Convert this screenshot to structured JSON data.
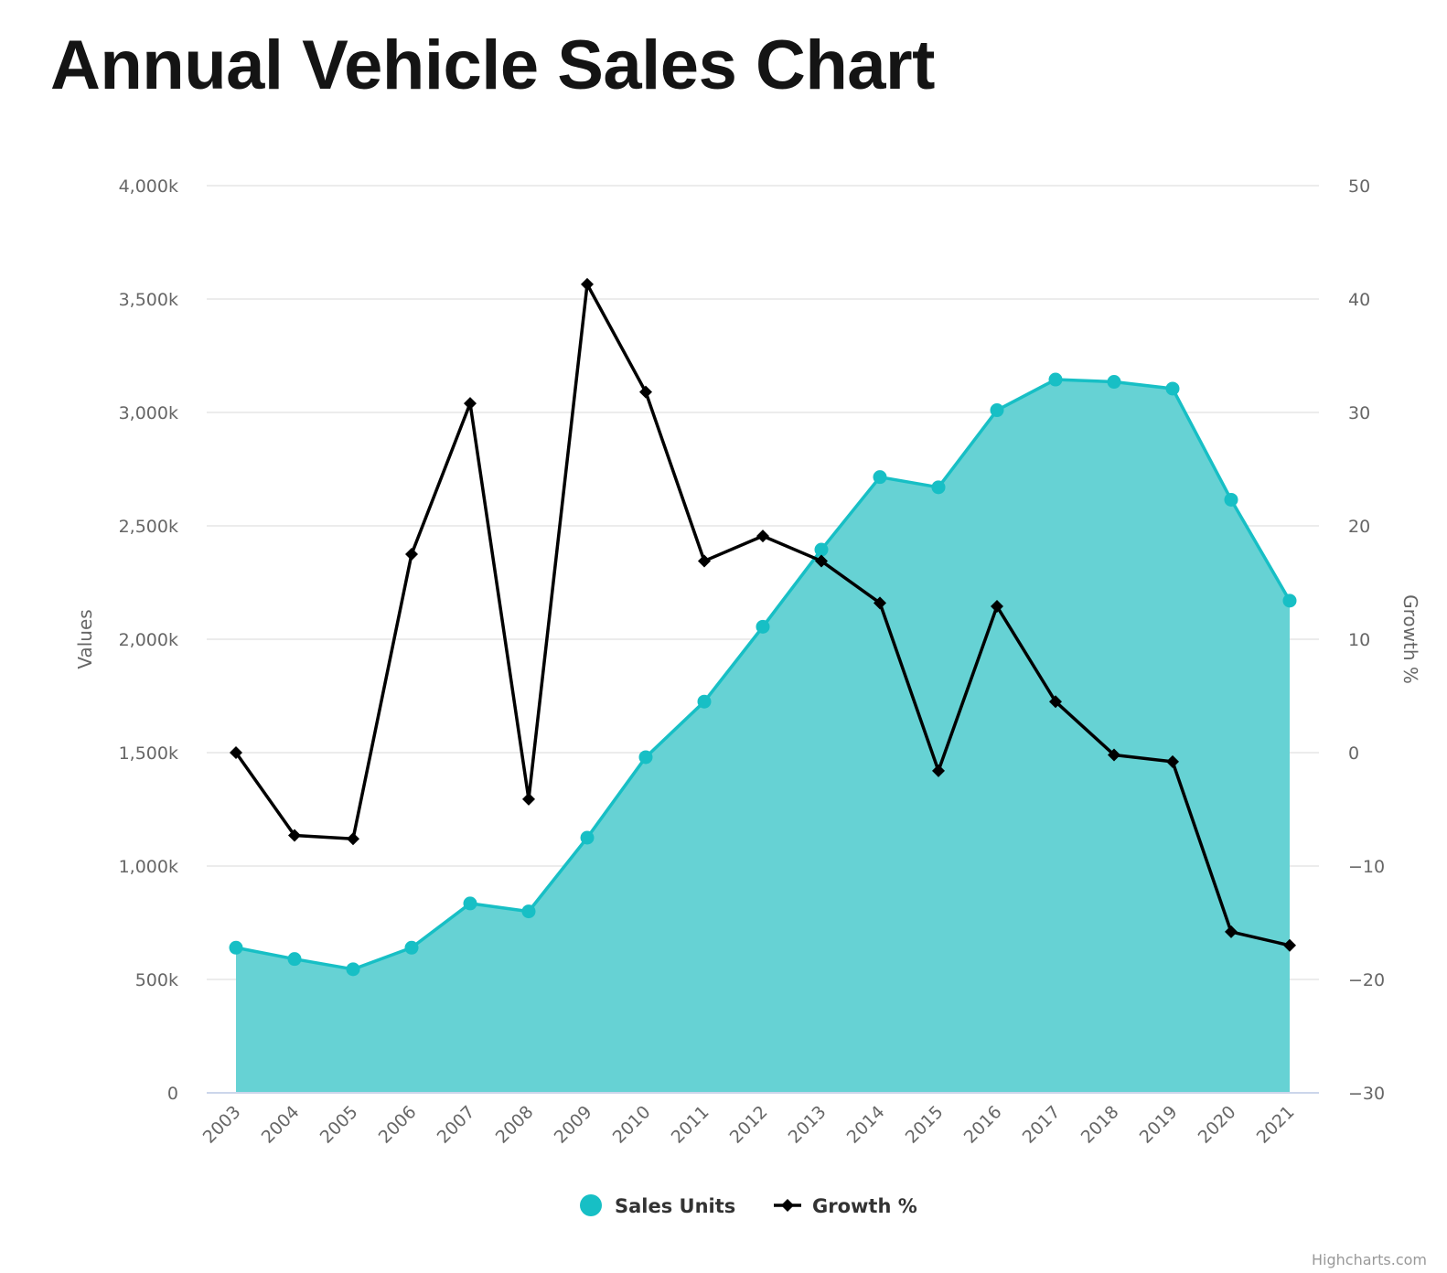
{
  "title": "Annual Vehicle Sales Chart",
  "credits": "Highcharts.com",
  "chart_data": {
    "type": "area",
    "title": "Annual Vehicle Sales Chart",
    "categories": [
      "2003",
      "2004",
      "2005",
      "2006",
      "2007",
      "2008",
      "2009",
      "2010",
      "2011",
      "2012",
      "2013",
      "2014",
      "2015",
      "2016",
      "2017",
      "2018",
      "2019",
      "2020",
      "2021"
    ],
    "y_left": {
      "title": "Values",
      "min": 0,
      "max": 4000000,
      "tick_values": [
        0,
        500000,
        1000000,
        1500000,
        2000000,
        2500000,
        3000000,
        3500000,
        4000000
      ],
      "tick_labels": [
        "0",
        "500k",
        "1,000k",
        "1,500k",
        "2,000k",
        "2,500k",
        "3,000k",
        "3,500k",
        "4,000k"
      ]
    },
    "y_right": {
      "title": "Growth %",
      "min": -30,
      "max": 50,
      "tick_values": [
        -30,
        -20,
        -10,
        0,
        10,
        20,
        30,
        40,
        50
      ],
      "tick_labels": [
        "−30",
        "−20",
        "−10",
        "0",
        "10",
        "20",
        "30",
        "40",
        "50"
      ]
    },
    "grid": true,
    "legend_position": "bottom-center",
    "series": [
      {
        "name": "Sales Units",
        "type": "area",
        "axis": "left",
        "color": "#17bfc5",
        "fill_color": "#66d2d4",
        "values": [
          640000,
          590000,
          545000,
          640000,
          835000,
          800000,
          1125000,
          1480000,
          1725000,
          2055000,
          2395000,
          2715000,
          2670000,
          3010000,
          3145000,
          3135000,
          3105000,
          2615000,
          2170000
        ]
      },
      {
        "name": "Growth %",
        "type": "line",
        "axis": "right",
        "color": "#000000",
        "marker": "diamond",
        "values": [
          0,
          -7.3,
          -7.6,
          17.5,
          30.8,
          -4.1,
          41.3,
          31.8,
          16.9,
          19.1,
          16.9,
          13.2,
          -1.6,
          12.9,
          4.5,
          -0.2,
          -0.8,
          -15.8,
          -17
        ]
      }
    ]
  }
}
